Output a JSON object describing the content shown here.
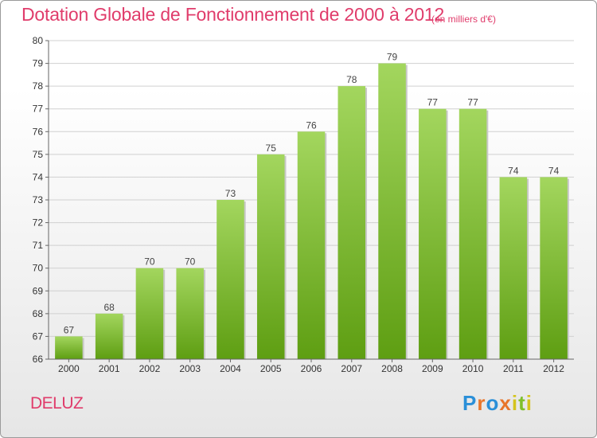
{
  "header": {
    "title": "Dotation Globale de Fonctionnement de 2000 à 2012",
    "subtitle": "(en milliers d'€)"
  },
  "footer": {
    "commune": "DELUZ",
    "logo_text": "Proxiti"
  },
  "colors": {
    "title": "#e03c6b",
    "bar_light": "#9fd25a",
    "bar_dark": "#5e9e12",
    "logo": [
      "#2a8fd8",
      "#e8752a",
      "#2a8fd8",
      "#e8752a",
      "#d4c41d",
      "#7fbf2a",
      "#d4c41d"
    ]
  },
  "chart_data": {
    "type": "bar",
    "title": "Dotation Globale de Fonctionnement de 2000 à 2012",
    "subtitle": "(en milliers d'€)",
    "xlabel": "",
    "ylabel": "",
    "categories": [
      "2000",
      "2001",
      "2002",
      "2003",
      "2004",
      "2005",
      "2006",
      "2007",
      "2008",
      "2009",
      "2010",
      "2011",
      "2012"
    ],
    "values": [
      67,
      68,
      70,
      70,
      73,
      75,
      76,
      78,
      79,
      77,
      77,
      74,
      74
    ],
    "ylim": [
      66,
      80
    ],
    "yticks": [
      66,
      67,
      68,
      69,
      70,
      71,
      72,
      73,
      74,
      75,
      76,
      77,
      78,
      79,
      80
    ],
    "grid": true,
    "data_labels": true
  }
}
